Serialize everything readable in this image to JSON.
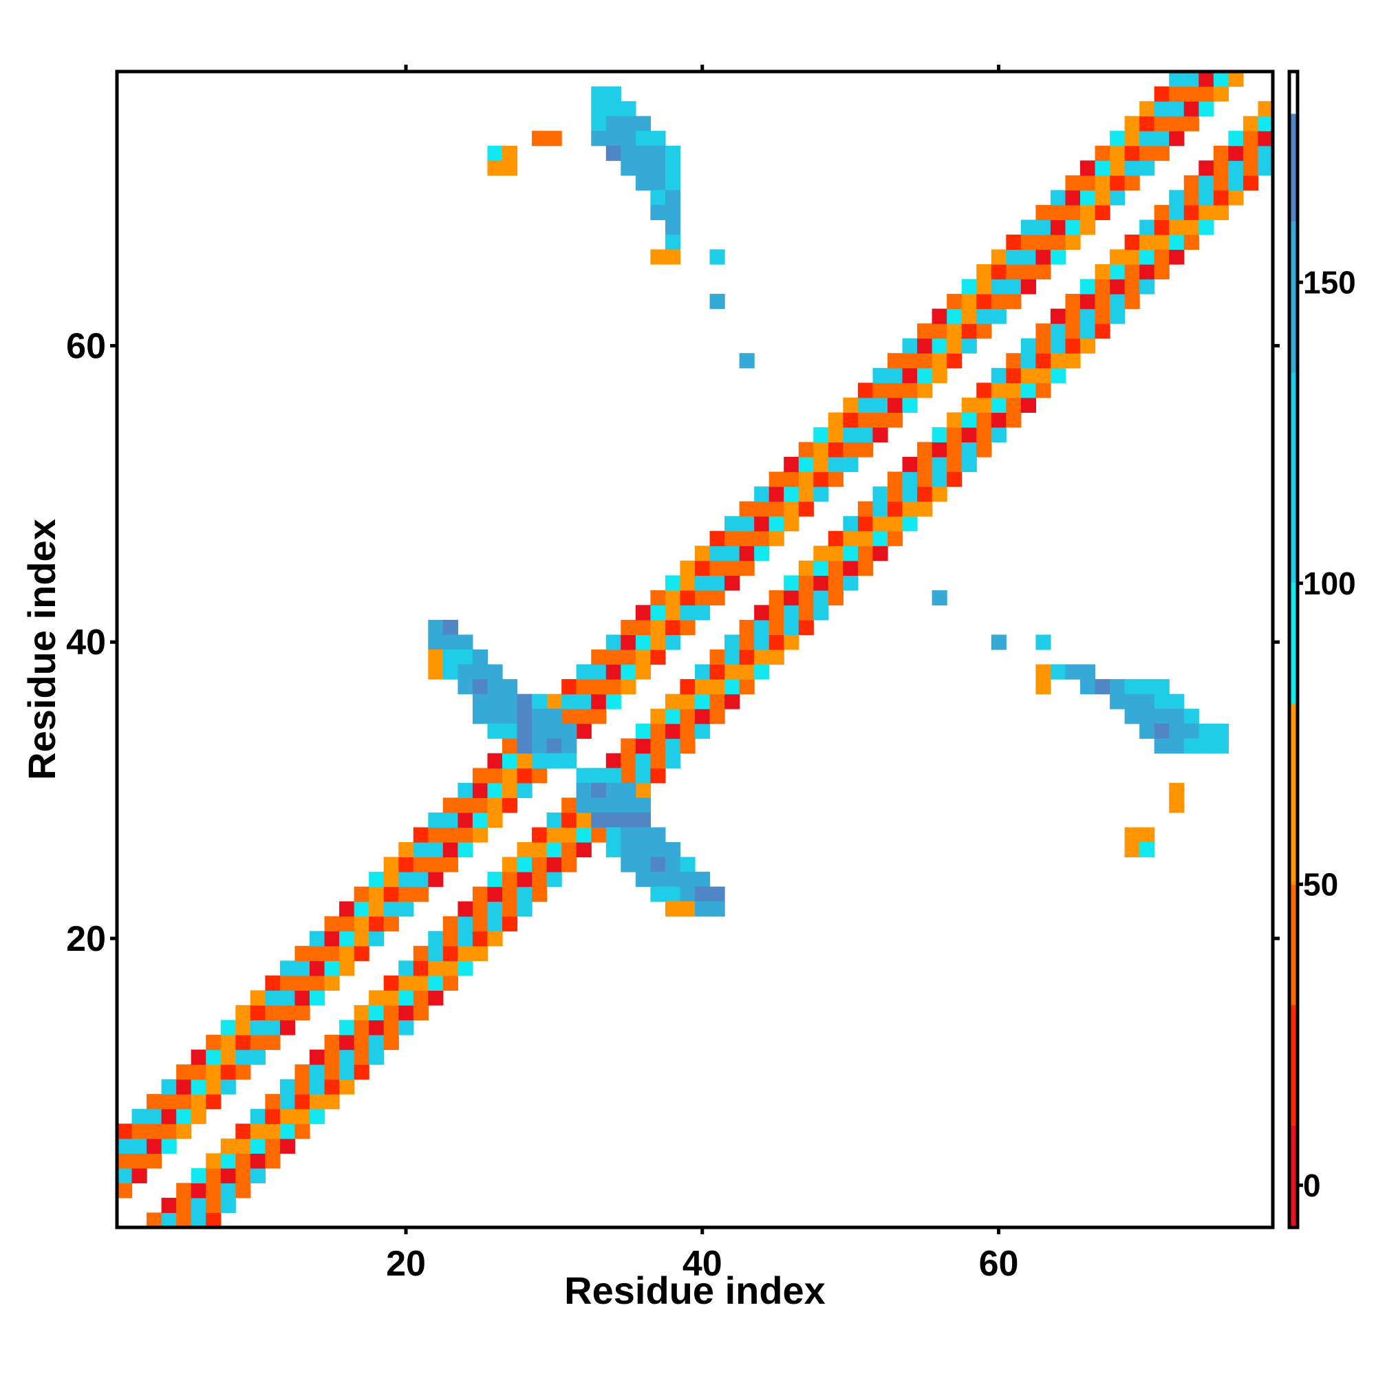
{
  "chart_data": {
    "type": "heatmap",
    "title": "",
    "xlabel": "Residue index",
    "ylabel": "Residue index",
    "xlim": [
      1,
      78
    ],
    "ylim": [
      1,
      78
    ],
    "x_ticks": [
      20,
      40,
      60
    ],
    "y_ticks": [
      20,
      40,
      60
    ],
    "colorbar": {
      "ticks": [
        0,
        50,
        100,
        150
      ],
      "range": [
        -7,
        185
      ],
      "bands": [
        {
          "from": -7,
          "to": 10,
          "color": "#e8101a"
        },
        {
          "from": 10,
          "to": 30,
          "color": "#ff2a00"
        },
        {
          "from": 30,
          "to": 50,
          "color": "#ff6a00"
        },
        {
          "from": 50,
          "to": 80,
          "color": "#ff9500"
        },
        {
          "from": 80,
          "to": 100,
          "color": "#11e8f0"
        },
        {
          "from": 100,
          "to": 135,
          "color": "#1fcde8"
        },
        {
          "from": 135,
          "to": 160,
          "color": "#36a9d6"
        },
        {
          "from": 160,
          "to": 178,
          "color": "#4f86c6"
        },
        {
          "from": 178,
          "to": 185,
          "color": "#ffffff"
        }
      ]
    },
    "diagonal_band": {
      "description_values": "cells (i, j) with 2 <= |i - j| <= 6 along the main diagonal",
      "x_range": [
        1,
        78
      ],
      "min_offset": 2,
      "max_offset": 6,
      "pattern_values": [
        5,
        35,
        60,
        42,
        110,
        20,
        88,
        45,
        125,
        55
      ]
    },
    "cells": [
      [
        33,
        77,
        110
      ],
      [
        34,
        77,
        110
      ],
      [
        33,
        76,
        105
      ],
      [
        34,
        76,
        115
      ],
      [
        35,
        76,
        115
      ],
      [
        33,
        75,
        115
      ],
      [
        34,
        75,
        140
      ],
      [
        35,
        75,
        140
      ],
      [
        36,
        75,
        140
      ],
      [
        33,
        74,
        140
      ],
      [
        34,
        74,
        140
      ],
      [
        35,
        74,
        140
      ],
      [
        36,
        74,
        115
      ],
      [
        37,
        74,
        110
      ],
      [
        34,
        73,
        165
      ],
      [
        35,
        73,
        140
      ],
      [
        36,
        73,
        140
      ],
      [
        37,
        73,
        140
      ],
      [
        38,
        73,
        110
      ],
      [
        35,
        72,
        140
      ],
      [
        36,
        72,
        140
      ],
      [
        37,
        72,
        140
      ],
      [
        38,
        72,
        110
      ],
      [
        36,
        71,
        140
      ],
      [
        37,
        71,
        140
      ],
      [
        38,
        71,
        110
      ],
      [
        37,
        70,
        110
      ],
      [
        38,
        70,
        140
      ],
      [
        37,
        69,
        150
      ],
      [
        38,
        69,
        140
      ],
      [
        38,
        68,
        140
      ],
      [
        38,
        67,
        110
      ],
      [
        37,
        66,
        65
      ],
      [
        38,
        66,
        65
      ],
      [
        41,
        66,
        110
      ],
      [
        41,
        63,
        150
      ],
      [
        43,
        59,
        150
      ],
      [
        26,
        73,
        90
      ],
      [
        27,
        73,
        62
      ],
      [
        26,
        72,
        62
      ],
      [
        27,
        72,
        62
      ],
      [
        29,
        74,
        40
      ],
      [
        30,
        74,
        40
      ],
      [
        22,
        41,
        150
      ],
      [
        23,
        41,
        165
      ],
      [
        22,
        40,
        140
      ],
      [
        23,
        40,
        140
      ],
      [
        24,
        40,
        140
      ],
      [
        22,
        39,
        65
      ],
      [
        23,
        39,
        115
      ],
      [
        24,
        39,
        115
      ],
      [
        25,
        39,
        140
      ],
      [
        22,
        38,
        65
      ],
      [
        23,
        38,
        110
      ],
      [
        24,
        38,
        140
      ],
      [
        25,
        38,
        140
      ],
      [
        26,
        38,
        140
      ],
      [
        24,
        37,
        140
      ],
      [
        25,
        37,
        165
      ],
      [
        26,
        37,
        140
      ],
      [
        27,
        37,
        140
      ],
      [
        25,
        36,
        140
      ],
      [
        26,
        36,
        140
      ],
      [
        27,
        36,
        140
      ],
      [
        28,
        36,
        165
      ],
      [
        29,
        36,
        110
      ],
      [
        25,
        35,
        140
      ],
      [
        26,
        35,
        140
      ],
      [
        27,
        35,
        140
      ],
      [
        28,
        35,
        165
      ],
      [
        29,
        35,
        140
      ],
      [
        30,
        35,
        140
      ],
      [
        26,
        34,
        110
      ],
      [
        27,
        34,
        110
      ],
      [
        28,
        34,
        165
      ],
      [
        29,
        34,
        140
      ],
      [
        30,
        34,
        140
      ],
      [
        31,
        34,
        140
      ],
      [
        28,
        33,
        165
      ],
      [
        29,
        33,
        140
      ],
      [
        30,
        33,
        165
      ],
      [
        31,
        33,
        140
      ],
      [
        29,
        32,
        110
      ],
      [
        30,
        32,
        110
      ],
      [
        31,
        32,
        110
      ],
      [
        32,
        31,
        110
      ],
      [
        33,
        31,
        110
      ],
      [
        34,
        31,
        110
      ],
      [
        32,
        30,
        140
      ],
      [
        33,
        30,
        165
      ],
      [
        34,
        30,
        140
      ],
      [
        35,
        30,
        140
      ],
      [
        32,
        29,
        140
      ],
      [
        33,
        29,
        140
      ],
      [
        34,
        29,
        140
      ],
      [
        35,
        29,
        140
      ],
      [
        36,
        29,
        140
      ],
      [
        33,
        28,
        165
      ],
      [
        34,
        28,
        165
      ],
      [
        35,
        28,
        165
      ],
      [
        36,
        28,
        165
      ],
      [
        34,
        27,
        110
      ],
      [
        35,
        27,
        140
      ],
      [
        36,
        27,
        140
      ],
      [
        37,
        27,
        140
      ],
      [
        34,
        26,
        110
      ],
      [
        35,
        26,
        140
      ],
      [
        36,
        26,
        140
      ],
      [
        37,
        26,
        140
      ],
      [
        38,
        26,
        140
      ],
      [
        35,
        25,
        140
      ],
      [
        36,
        25,
        140
      ],
      [
        37,
        25,
        165
      ],
      [
        38,
        25,
        140
      ],
      [
        39,
        25,
        110
      ],
      [
        36,
        24,
        140
      ],
      [
        37,
        24,
        140
      ],
      [
        38,
        24,
        140
      ],
      [
        39,
        24,
        140
      ],
      [
        40,
        24,
        140
      ],
      [
        37,
        23,
        110
      ],
      [
        38,
        23,
        110
      ],
      [
        39,
        23,
        140
      ],
      [
        40,
        23,
        165
      ],
      [
        41,
        23,
        165
      ],
      [
        38,
        22,
        65
      ],
      [
        39,
        22,
        65
      ],
      [
        40,
        22,
        140
      ],
      [
        41,
        22,
        140
      ],
      [
        56,
        43,
        150
      ],
      [
        60,
        40,
        150
      ],
      [
        63,
        40,
        110
      ],
      [
        63,
        38,
        65
      ],
      [
        64,
        38,
        110
      ],
      [
        65,
        38,
        150
      ],
      [
        66,
        38,
        150
      ],
      [
        63,
        37,
        65
      ],
      [
        66,
        37,
        150
      ],
      [
        67,
        37,
        165
      ],
      [
        68,
        37,
        140
      ],
      [
        69,
        37,
        110
      ],
      [
        70,
        37,
        110
      ],
      [
        71,
        37,
        110
      ],
      [
        68,
        36,
        140
      ],
      [
        69,
        36,
        140
      ],
      [
        70,
        36,
        140
      ],
      [
        71,
        36,
        115
      ],
      [
        72,
        36,
        110
      ],
      [
        69,
        35,
        140
      ],
      [
        70,
        35,
        140
      ],
      [
        71,
        35,
        140
      ],
      [
        72,
        35,
        140
      ],
      [
        73,
        35,
        110
      ],
      [
        70,
        34,
        140
      ],
      [
        71,
        34,
        165
      ],
      [
        72,
        34,
        140
      ],
      [
        73,
        34,
        140
      ],
      [
        74,
        34,
        110
      ],
      [
        75,
        34,
        110
      ],
      [
        71,
        33,
        140
      ],
      [
        72,
        33,
        140
      ],
      [
        73,
        33,
        110
      ],
      [
        74,
        33,
        110
      ],
      [
        75,
        33,
        110
      ],
      [
        72,
        30,
        60
      ],
      [
        72,
        29,
        60
      ],
      [
        69,
        27,
        62
      ],
      [
        70,
        27,
        62
      ],
      [
        69,
        26,
        62
      ],
      [
        70,
        26,
        90
      ]
    ]
  }
}
